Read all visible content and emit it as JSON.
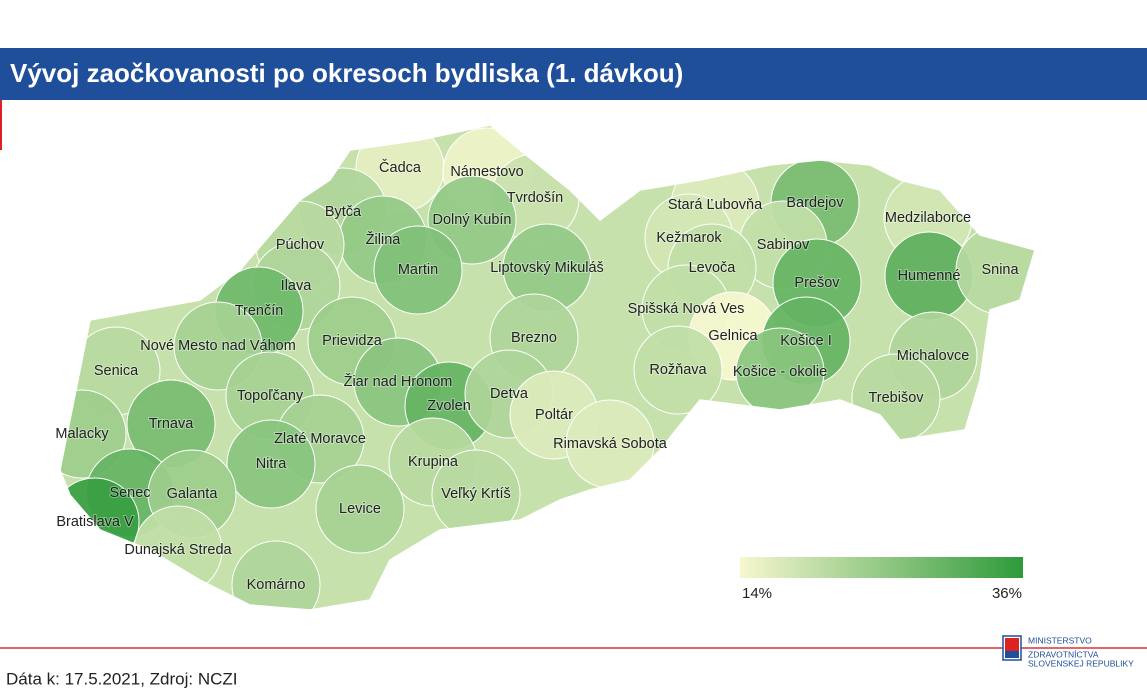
{
  "header": {
    "title": "Vývoj zaočkovanosti po okresoch bydliska (1. dávkou)"
  },
  "map": {
    "districts": [
      {
        "name": "Čadca",
        "value": 16
      },
      {
        "name": "Námestovo",
        "value": 15
      },
      {
        "name": "Tvrdošín",
        "value": 19
      },
      {
        "name": "Bytča",
        "value": 22
      },
      {
        "name": "Žilina",
        "value": 25
      },
      {
        "name": "Dolný Kubín",
        "value": 25
      },
      {
        "name": "Púchov",
        "value": 21
      },
      {
        "name": "Martin",
        "value": 27
      },
      {
        "name": "Liptovský Mikuláš",
        "value": 25
      },
      {
        "name": "Ilava",
        "value": 22
      },
      {
        "name": "Trenčín",
        "value": 29
      },
      {
        "name": "Brezno",
        "value": 22
      },
      {
        "name": "Prievidza",
        "value": 24
      },
      {
        "name": "Nové Mesto nad Váhom",
        "value": 23
      },
      {
        "name": "Senica",
        "value": 21
      },
      {
        "name": "Žiar nad Hronom",
        "value": 26
      },
      {
        "name": "Topoľčany",
        "value": 23
      },
      {
        "name": "Zvolen",
        "value": 30
      },
      {
        "name": "Detva",
        "value": 22
      },
      {
        "name": "Malacky",
        "value": 24
      },
      {
        "name": "Trnava",
        "value": 28
      },
      {
        "name": "Poltár",
        "value": 17
      },
      {
        "name": "Zlaté Moravce",
        "value": 23
      },
      {
        "name": "Rimavská Sobota",
        "value": 17
      },
      {
        "name": "Nitra",
        "value": 26
      },
      {
        "name": "Krupina",
        "value": 21
      },
      {
        "name": "Senec",
        "value": 30
      },
      {
        "name": "Galanta",
        "value": 24
      },
      {
        "name": "Veľký Krtíš",
        "value": 21
      },
      {
        "name": "Bratislava V",
        "value": 35
      },
      {
        "name": "Levice",
        "value": 23
      },
      {
        "name": "Dunajská Streda",
        "value": 20
      },
      {
        "name": "Komárno",
        "value": 22
      },
      {
        "name": "Stará Ľubovňa",
        "value": 17
      },
      {
        "name": "Bardejov",
        "value": 28
      },
      {
        "name": "Medzilaborce",
        "value": 18
      },
      {
        "name": "Kežmarok",
        "value": 18
      },
      {
        "name": "Sabinov",
        "value": 20
      },
      {
        "name": "Humenné",
        "value": 31
      },
      {
        "name": "Snina",
        "value": 21
      },
      {
        "name": "Levoča",
        "value": 20
      },
      {
        "name": "Prešov",
        "value": 30
      },
      {
        "name": "Spišská Nová Ves",
        "value": 20
      },
      {
        "name": "Gelnica",
        "value": 14
      },
      {
        "name": "Košice I",
        "value": 30
      },
      {
        "name": "Michalovce",
        "value": 22
      },
      {
        "name": "Rožňava",
        "value": 20
      },
      {
        "name": "Košice - okolie",
        "value": 26
      },
      {
        "name": "Trebišov",
        "value": 21
      }
    ],
    "legend": {
      "min": {
        "value": 14,
        "label": "14%"
      },
      "max": {
        "value": 36,
        "label": "36%"
      },
      "color_low": "#f7f7cf",
      "color_high": "#2e9a3a"
    }
  },
  "footer": {
    "source": "Dáta k: 17.5.2021, Zdroj: NCZI"
  },
  "logo": {
    "lines": [
      "MINISTERSTVO",
      "ZDRAVOTNÍCTVA",
      "SLOVENSKEJ REPUBLIKY"
    ]
  }
}
